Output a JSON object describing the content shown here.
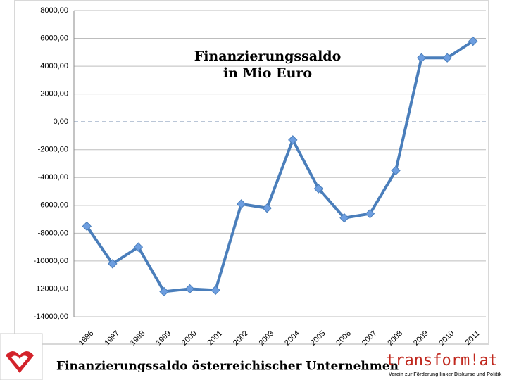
{
  "chart_data": {
    "type": "line",
    "title": [
      "Finanzierungssaldo",
      "in Mio Euro"
    ],
    "categories": [
      "1996",
      "1997",
      "1998",
      "1999",
      "2000",
      "2001",
      "2002",
      "2003",
      "2004",
      "2005",
      "2006",
      "2007",
      "2008",
      "2009",
      "2010",
      "2011"
    ],
    "series": [
      {
        "color": "#4a7ebb",
        "values": [
          -7500,
          -10200,
          -9000,
          -12200,
          -12000,
          -12100,
          -5900,
          -6200,
          -1300,
          -4800,
          -6900,
          -6600,
          -3500,
          4600,
          4600,
          5800
        ]
      }
    ],
    "ylim": [
      -14000,
      8000
    ],
    "yticks": [
      {
        "value": -14000,
        "label": "-14000,00"
      },
      {
        "value": -12000,
        "label": "-12000,00"
      },
      {
        "value": -10000,
        "label": "-10000,00"
      },
      {
        "value": -8000,
        "label": "-8000,00"
      },
      {
        "value": -6000,
        "label": "-6000,00"
      },
      {
        "value": -4000,
        "label": "-4000,00"
      },
      {
        "value": -2000,
        "label": "-2000,00"
      },
      {
        "value": 0,
        "label": "0,00"
      },
      {
        "value": 2000,
        "label": "2000,00"
      },
      {
        "value": 4000,
        "label": "4000,00"
      },
      {
        "value": 6000,
        "label": "6000,00"
      },
      {
        "value": 8000,
        "label": "8000,00"
      }
    ],
    "grid": true
  },
  "footer": {
    "caption": "Finanzierungssaldo österreichischer Unternehmen",
    "logo": "transform!at",
    "logo_subtitle": "Verein zur Förderung linker Diskurse und Politik"
  }
}
